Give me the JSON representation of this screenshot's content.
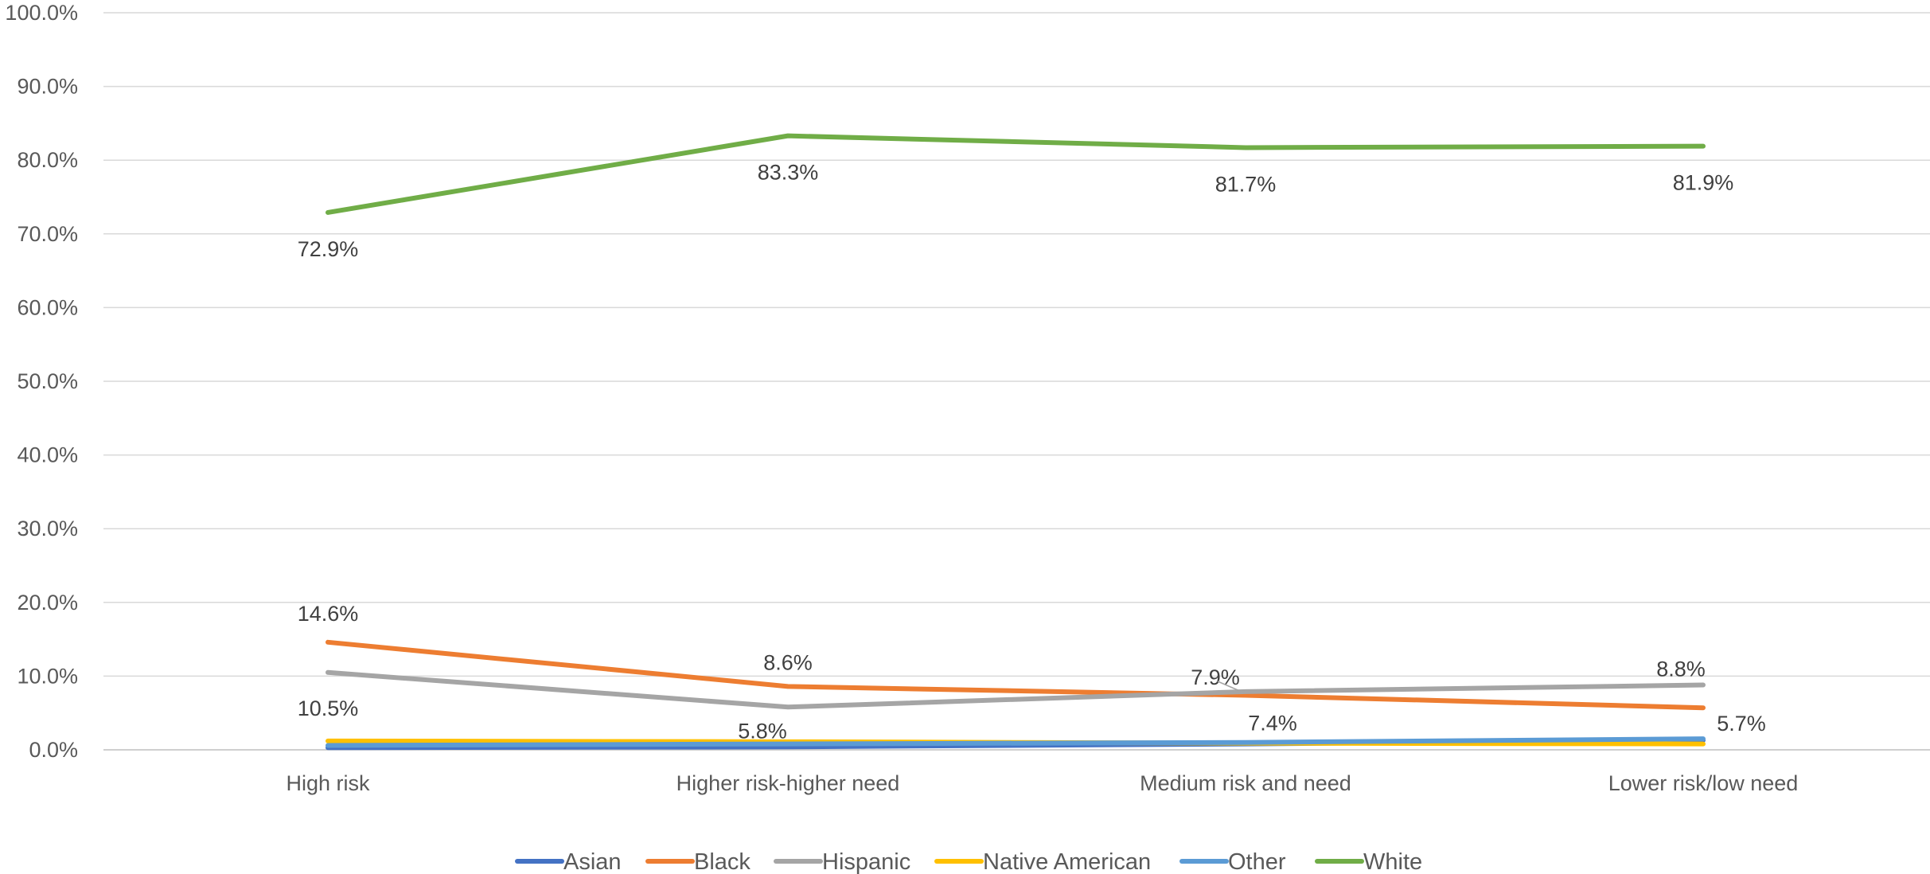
{
  "chart_data": {
    "type": "line",
    "title": "",
    "xlabel": "",
    "ylabel": "",
    "categories": [
      "High risk",
      "Higher risk-higher need",
      "Medium risk and need",
      "Lower risk/low need"
    ],
    "ylim": [
      0,
      100
    ],
    "yticks": [
      "0.0%",
      "10.0%",
      "20.0%",
      "30.0%",
      "40.0%",
      "50.0%",
      "60.0%",
      "70.0%",
      "80.0%",
      "90.0%",
      "100.0%"
    ],
    "grid": true,
    "legend_position": "bottom",
    "series": [
      {
        "name": "Asian",
        "color": "#4472C4",
        "values": [
          0.3,
          0.4,
          0.8,
          1.3
        ],
        "labels": [
          null,
          null,
          null,
          null
        ]
      },
      {
        "name": "Black",
        "color": "#ED7D31",
        "values": [
          14.6,
          8.6,
          7.4,
          5.7
        ],
        "labels": [
          "14.6%",
          "8.6%",
          "7.4%",
          "5.7%"
        ]
      },
      {
        "name": "Hispanic",
        "color": "#A5A5A5",
        "values": [
          10.5,
          5.8,
          7.9,
          8.8
        ],
        "labels": [
          "10.5%",
          "5.8%",
          "7.9%",
          "8.8%"
        ]
      },
      {
        "name": "Native American",
        "color": "#FFC000",
        "values": [
          1.2,
          1.1,
          0.9,
          0.8
        ],
        "labels": [
          null,
          null,
          null,
          null
        ]
      },
      {
        "name": "Other",
        "color": "#5B9BD5",
        "values": [
          0.6,
          0.8,
          1.0,
          1.5
        ],
        "labels": [
          null,
          null,
          null,
          null
        ]
      },
      {
        "name": "White",
        "color": "#70AD47",
        "values": [
          72.9,
          83.3,
          81.7,
          81.9
        ],
        "labels": [
          "72.9%",
          "83.3%",
          "81.7%",
          "81.9%"
        ]
      }
    ]
  }
}
